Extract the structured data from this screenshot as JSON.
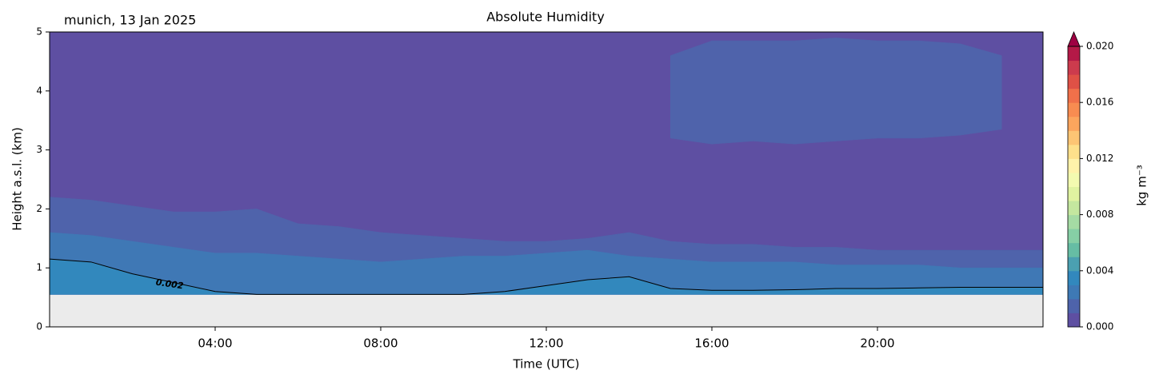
{
  "chart_data": {
    "type": "contourf",
    "title": "Absolute Humidity",
    "subtitle": "munich, 13 Jan 2025",
    "xlabel": "Time (UTC)",
    "ylabel": "Height a.s.l. (km)",
    "x": [
      0,
      1,
      2,
      3,
      4,
      5,
      6,
      7,
      8,
      9,
      10,
      11,
      12,
      13,
      14,
      15,
      16,
      17,
      18,
      19,
      20,
      21,
      22,
      23,
      24
    ],
    "xlim": [
      0,
      24
    ],
    "xticks": [
      {
        "value": 4,
        "label": "04:00"
      },
      {
        "value": 8,
        "label": "08:00"
      },
      {
        "value": 12,
        "label": "12:00"
      },
      {
        "value": 16,
        "label": "16:00"
      },
      {
        "value": 20,
        "label": "20:00"
      }
    ],
    "ylim": [
      0,
      5
    ],
    "yticks": [
      0,
      1,
      2,
      3,
      4,
      5
    ],
    "missing_color": "#ebebeb",
    "bands": [
      {
        "color": "#5e4fa2",
        "upper": [
          5,
          5,
          5,
          5,
          5,
          5,
          5,
          5,
          5,
          5,
          5,
          5,
          5,
          5,
          5,
          5,
          5,
          5,
          5,
          5,
          5,
          5,
          5,
          5,
          5
        ],
        "lower": [
          0.55,
          0.55,
          0.55,
          0.55,
          0.55,
          0.55,
          0.55,
          0.55,
          0.55,
          0.55,
          0.55,
          0.55,
          0.55,
          0.55,
          0.55,
          0.55,
          0.55,
          0.55,
          0.55,
          0.55,
          0.55,
          0.55,
          0.55,
          0.55,
          0.55
        ]
      },
      {
        "color": "#4f63ab",
        "upper": [
          2.2,
          2.15,
          2.05,
          1.95,
          1.95,
          2.0,
          1.75,
          1.7,
          1.6,
          1.55,
          1.5,
          1.45,
          1.45,
          1.5,
          1.6,
          1.45,
          1.4,
          1.4,
          1.35,
          1.35,
          1.3,
          1.3,
          1.3,
          1.3,
          1.3
        ],
        "lower": [
          0.55,
          0.55,
          0.55,
          0.55,
          0.55,
          0.55,
          0.55,
          0.55,
          0.55,
          0.55,
          0.55,
          0.55,
          0.55,
          0.55,
          0.55,
          0.55,
          0.55,
          0.55,
          0.55,
          0.55,
          0.55,
          0.55,
          0.55,
          0.55,
          0.55
        ]
      },
      {
        "color": "#4f63ab",
        "upper": [
          null,
          null,
          null,
          null,
          null,
          null,
          null,
          null,
          null,
          null,
          null,
          null,
          null,
          null,
          null,
          4.6,
          4.85,
          4.85,
          4.85,
          4.9,
          4.85,
          4.85,
          4.8,
          4.6,
          null
        ],
        "lower": [
          null,
          null,
          null,
          null,
          null,
          null,
          null,
          null,
          null,
          null,
          null,
          null,
          null,
          null,
          null,
          3.2,
          3.1,
          3.15,
          3.1,
          3.15,
          3.2,
          3.2,
          3.25,
          3.35,
          null
        ]
      },
      {
        "color": "#3f78b5",
        "upper": [
          1.6,
          1.55,
          1.45,
          1.35,
          1.25,
          1.25,
          1.2,
          1.15,
          1.1,
          1.15,
          1.2,
          1.2,
          1.25,
          1.3,
          1.2,
          1.15,
          1.1,
          1.1,
          1.1,
          1.05,
          1.05,
          1.05,
          1.0,
          1.0,
          1.0
        ],
        "lower": [
          0.55,
          0.55,
          0.55,
          0.55,
          0.55,
          0.55,
          0.55,
          0.55,
          0.55,
          0.55,
          0.55,
          0.55,
          0.55,
          0.55,
          0.55,
          0.55,
          0.55,
          0.55,
          0.55,
          0.55,
          0.55,
          0.55,
          0.55,
          0.55,
          0.55
        ]
      },
      {
        "color": "#3288bd",
        "upper": [
          1.15,
          1.1,
          0.9,
          0.75,
          0.6,
          0.55,
          0.55,
          0.55,
          0.55,
          0.55,
          0.55,
          0.6,
          0.7,
          0.8,
          0.85,
          0.65,
          0.62,
          0.62,
          0.63,
          0.65,
          0.65,
          0.66,
          0.67,
          0.67,
          0.67
        ],
        "lower": [
          0.55,
          0.55,
          0.55,
          0.55,
          0.55,
          0.55,
          0.55,
          0.55,
          0.55,
          0.55,
          0.55,
          0.55,
          0.55,
          0.55,
          0.55,
          0.55,
          0.55,
          0.55,
          0.55,
          0.55,
          0.55,
          0.55,
          0.55,
          0.55,
          0.55
        ]
      }
    ],
    "contour": {
      "level": 0.002,
      "color": "#000000",
      "values": [
        1.15,
        1.1,
        0.9,
        0.75,
        0.6,
        0.55,
        0.55,
        0.55,
        0.55,
        0.55,
        0.55,
        0.6,
        0.7,
        0.8,
        0.85,
        0.65,
        0.62,
        0.62,
        0.63,
        0.65,
        0.65,
        0.66,
        0.67,
        0.67,
        0.67
      ]
    },
    "colorbar": {
      "label": "kg m⁻³",
      "lim": [
        0,
        0.02
      ],
      "ticks": [
        {
          "value": 0,
          "label": "0.000"
        },
        {
          "value": 0.004,
          "label": "0.004"
        },
        {
          "value": 0.008,
          "label": "0.008"
        },
        {
          "value": 0.012,
          "label": "0.012"
        },
        {
          "value": 0.016,
          "label": "0.016"
        },
        {
          "value": 0.02,
          "label": "0.020"
        }
      ],
      "colors": [
        "#5e4fa2",
        "#4e63ab",
        "#3e79b5",
        "#3288bd",
        "#4ba0b1",
        "#66bda4",
        "#86cfa5",
        "#a5dba4",
        "#c4e79f",
        "#e0f3a1",
        "#f3fab0",
        "#fff2aa",
        "#fee08b",
        "#fdc574",
        "#fca55d",
        "#f88c51",
        "#f0704a",
        "#df5146",
        "#cc3b4d",
        "#b41947"
      ],
      "extend_color": "#9e0142"
    }
  }
}
